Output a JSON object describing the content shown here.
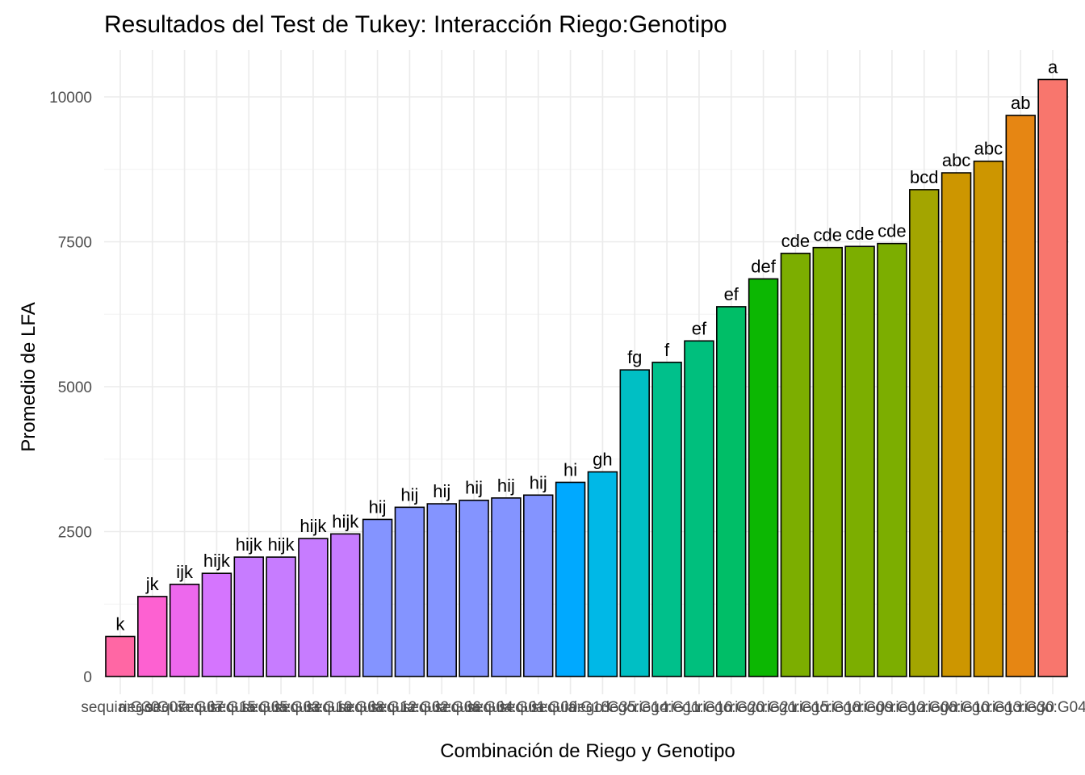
{
  "chart_data": {
    "type": "bar",
    "title": "Resultados del Test de Tukey: Interacción Riego:Genotipo",
    "xlabel": "Combinación de Riego y Genotipo",
    "ylabel": "Promedio de LFA",
    "ylim": [
      0,
      10750
    ],
    "yticks": [
      0,
      2500,
      5000,
      7500,
      10000
    ],
    "grid": true,
    "legend": "none",
    "categories": [
      "sequia:G30",
      "riego:G07",
      "sequia:G07",
      "sequia:G15",
      "sequia:G05",
      "sequia:G03",
      "sequia:G10",
      "sequia:G08",
      "sequia:G12",
      "sequia:G02",
      "sequia:G06",
      "sequia:G04",
      "sequia:G01",
      "sequia:G09",
      "sequia:G13",
      "riego:G35",
      "riego:G14",
      "riego:G11",
      "riego:G16",
      "riego:G20",
      "riego:G21",
      "riego:G15",
      "riego:G18",
      "riego:G09",
      "riego:G12",
      "riego:G08",
      "riego:G10",
      "riego:G13",
      "riego:G30",
      "riego:G04"
    ],
    "values": [
      690,
      1380,
      1590,
      1780,
      2060,
      2060,
      2380,
      2460,
      2710,
      2920,
      2980,
      3040,
      3080,
      3130,
      3350,
      3530,
      5290,
      5420,
      5790,
      6380,
      6860,
      7300,
      7400,
      7420,
      7470,
      8400,
      8690,
      8890,
      9680,
      10300
    ],
    "labels": [
      "k",
      "jk",
      "ijk",
      "hijk",
      "hijk",
      "hijk",
      "hijk",
      "hijk",
      "hij",
      "hij",
      "hij",
      "hij",
      "hij",
      "hij",
      "hi",
      "gh",
      "fg",
      "f",
      "ef",
      "ef",
      "def",
      "cde",
      "cde",
      "cde",
      "cde",
      "bcd",
      "abc",
      "abc",
      "ab",
      "a"
    ],
    "colors": [
      "#FF67A4",
      "#FD61D1",
      "#ED68ED",
      "#D575FE",
      "#C77CFF",
      "#C77CFF",
      "#C77CFF",
      "#C77CFF",
      "#8494FF",
      "#8494FF",
      "#8494FF",
      "#8494FF",
      "#8494FF",
      "#8494FF",
      "#00A9FF",
      "#00B8E7",
      "#00BFC4",
      "#00C08B",
      "#00BF7D",
      "#00BE67",
      "#0CB702",
      "#7CAE00",
      "#7CAE00",
      "#7CAE00",
      "#7CAE00",
      "#A3A500",
      "#CD9600",
      "#CD9600",
      "#E68613",
      "#F8766D"
    ]
  }
}
